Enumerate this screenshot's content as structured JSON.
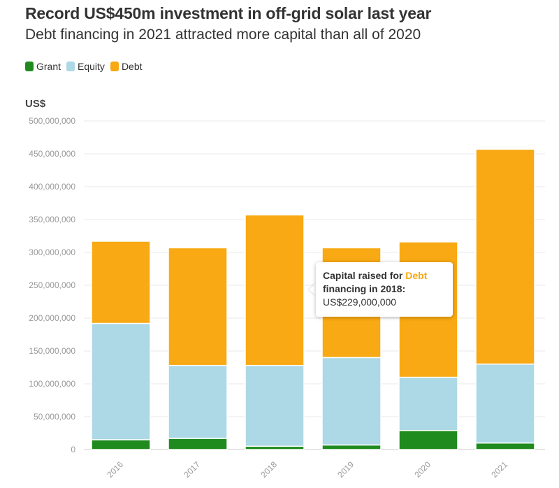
{
  "header": {
    "title": "Record US$450m investment in off-grid solar last year",
    "subtitle": "Debt financing in 2021 attracted more capital than all of 2020"
  },
  "legend": [
    {
      "label": "Grant",
      "color": "#1f8b1f"
    },
    {
      "label": "Equity",
      "color": "#add8e6"
    },
    {
      "label": "Debt",
      "color": "#f8a913"
    }
  ],
  "tooltip": {
    "prefix": "Capital raised for ",
    "series": "Debt",
    "line2": "financing in 2018:",
    "value": "US$229,000,000"
  },
  "chart_data": {
    "type": "bar",
    "stacked": true,
    "ylabel": "US$",
    "ylim": [
      0,
      500000000
    ],
    "yticks": [
      0,
      50000000,
      100000000,
      150000000,
      200000000,
      250000000,
      300000000,
      350000000,
      400000000,
      450000000,
      500000000
    ],
    "ytick_labels": [
      "0",
      "50,000,000",
      "100,000,000",
      "150,000,000",
      "200,000,000",
      "250,000,000",
      "300,000,000",
      "350,000,000",
      "400,000,000",
      "450,000,000",
      "500,000,000"
    ],
    "categories": [
      "2016",
      "2017",
      "2018",
      "2019",
      "2020",
      "2021"
    ],
    "grid": true,
    "legend_position": "top-left",
    "series": [
      {
        "name": "Grant",
        "color": "#1f8b1f",
        "values": [
          15000000,
          17000000,
          5000000,
          7000000,
          29000000,
          10000000
        ]
      },
      {
        "name": "Equity",
        "color": "#add8e6",
        "values": [
          177000000,
          111000000,
          123000000,
          133000000,
          81000000,
          120000000
        ]
      },
      {
        "name": "Debt",
        "color": "#f8a913",
        "values": [
          125000000,
          179000000,
          229000000,
          167000000,
          206000000,
          327000000
        ]
      }
    ]
  }
}
